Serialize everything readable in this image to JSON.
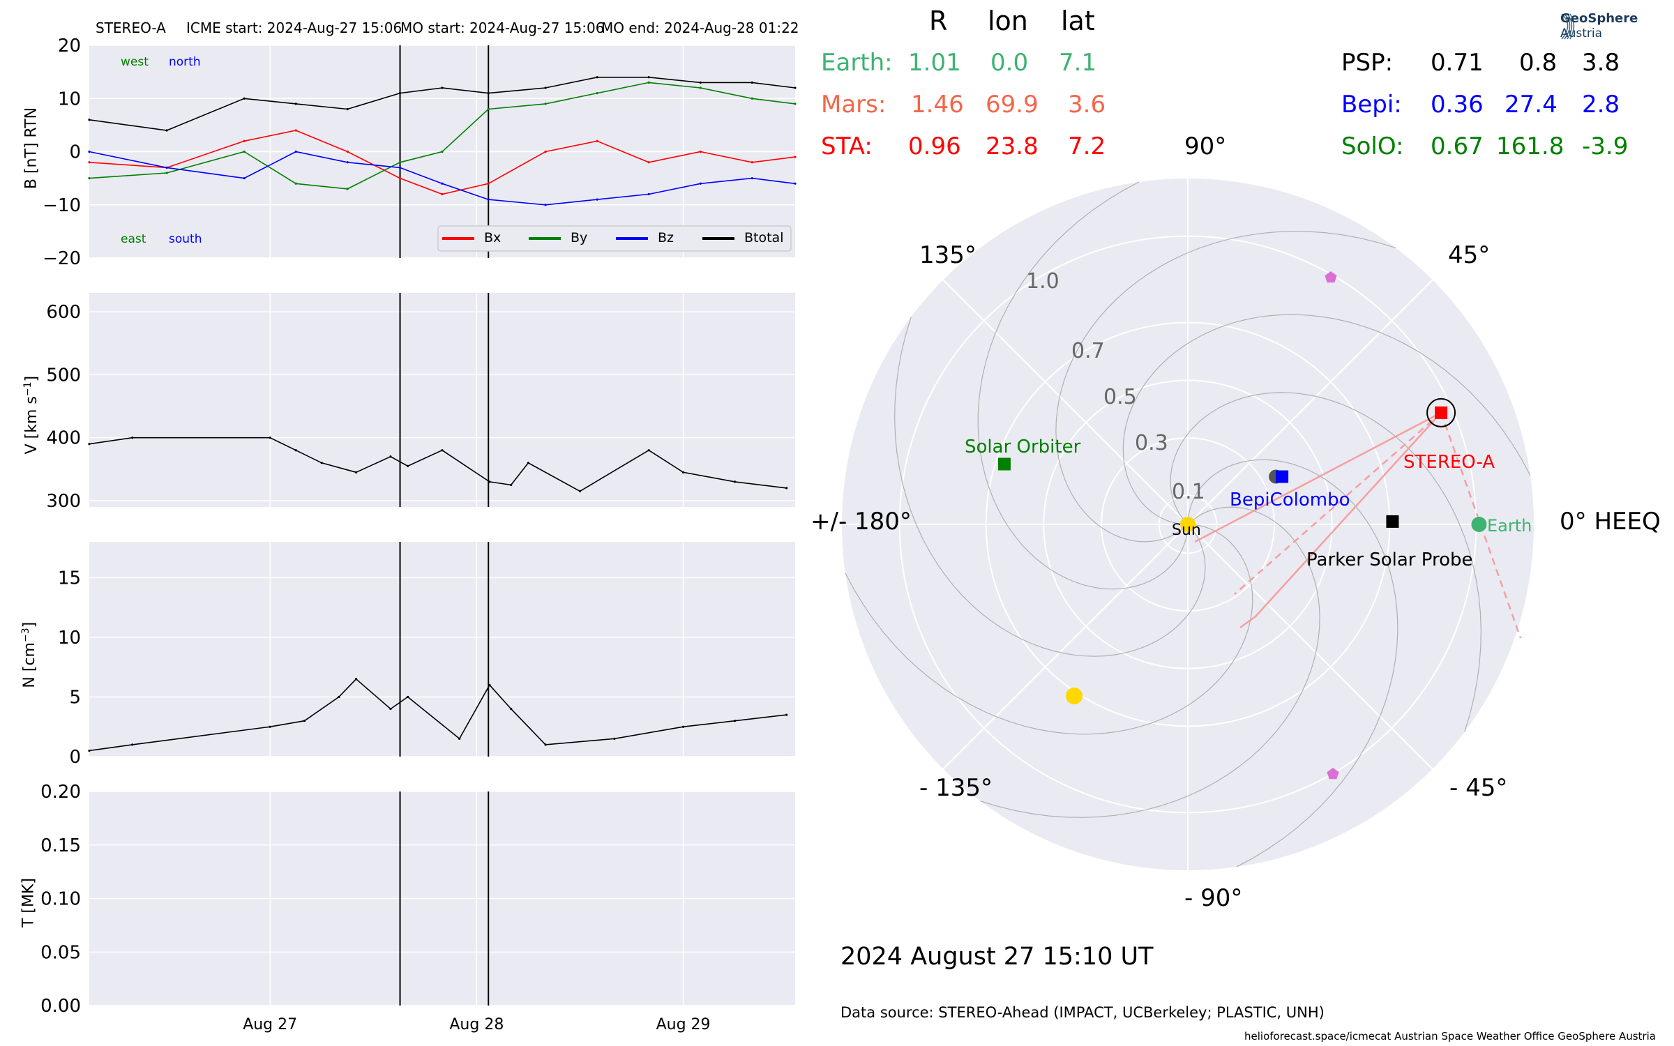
{
  "header": {
    "spacecraft": "STEREO-A",
    "icme_start": "ICME start: 2024-Aug-27 15:06",
    "mo_start": "MO start: 2024-Aug-27 15:06",
    "mo_end": "MO end: 2024-Aug-28 01:22"
  },
  "logo": {
    "line1": "GeoSphere",
    "line2": "Austria"
  },
  "colors": {
    "bg_panel": "#eaeaf2",
    "grid": "#ffffff",
    "bx": "#ff0000",
    "by": "#008000",
    "bz": "#0000ff",
    "btotal": "#000000",
    "earth": "#3cb371",
    "mars": "#f4664a",
    "sta": "#ff0000",
    "psp": "#000000",
    "bepi": "#0000ff",
    "solo": "#008000",
    "sun": "#ffd700",
    "pink": "#da70d6"
  },
  "chart_data": [
    {
      "type": "line",
      "ylabel": "B [nT] RTN",
      "ylim": [
        -20,
        20
      ],
      "yticks": [
        "20",
        "10",
        "0",
        "−10",
        "−20"
      ],
      "corner_labels": {
        "west": "west",
        "north": "north",
        "east": "east",
        "south": "south"
      },
      "legend": [
        "Bx",
        "By",
        "Bz",
        "Btotal"
      ],
      "x_domain": [
        "2024-08-26T03:00",
        "2024-08-29T13:00"
      ],
      "event_lines": [
        "2024-08-27T15:06",
        "2024-08-28T01:22"
      ],
      "series": [
        {
          "name": "Btotal",
          "x": [
            "2024-08-26T03:00",
            "2024-08-26T12:00",
            "2024-08-26T21:00",
            "2024-08-27T03:00",
            "2024-08-27T09:00",
            "2024-08-27T15:06",
            "2024-08-27T20:00",
            "2024-08-28T01:22",
            "2024-08-28T08:00",
            "2024-08-28T14:00",
            "2024-08-28T20:00",
            "2024-08-29T02:00",
            "2024-08-29T08:00",
            "2024-08-29T13:00"
          ],
          "values": [
            6,
            4,
            10,
            9,
            8,
            11,
            12,
            11,
            12,
            14,
            14,
            13,
            13,
            12
          ]
        },
        {
          "name": "Bx",
          "x": [
            "2024-08-26T03:00",
            "2024-08-26T12:00",
            "2024-08-26T21:00",
            "2024-08-27T03:00",
            "2024-08-27T09:00",
            "2024-08-27T15:06",
            "2024-08-27T20:00",
            "2024-08-28T01:22",
            "2024-08-28T08:00",
            "2024-08-28T14:00",
            "2024-08-28T20:00",
            "2024-08-29T02:00",
            "2024-08-29T08:00",
            "2024-08-29T13:00"
          ],
          "values": [
            -2,
            -3,
            2,
            4,
            0,
            -5,
            -8,
            -6,
            0,
            2,
            -2,
            0,
            -2,
            -1
          ]
        },
        {
          "name": "By",
          "x": [
            "2024-08-26T03:00",
            "2024-08-26T12:00",
            "2024-08-26T21:00",
            "2024-08-27T03:00",
            "2024-08-27T09:00",
            "2024-08-27T15:06",
            "2024-08-27T20:00",
            "2024-08-28T01:22",
            "2024-08-28T08:00",
            "2024-08-28T14:00",
            "2024-08-28T20:00",
            "2024-08-29T02:00",
            "2024-08-29T08:00",
            "2024-08-29T13:00"
          ],
          "values": [
            -5,
            -4,
            0,
            -6,
            -7,
            -2,
            0,
            8,
            9,
            11,
            13,
            12,
            10,
            9
          ]
        },
        {
          "name": "Bz",
          "x": [
            "2024-08-26T03:00",
            "2024-08-26T12:00",
            "2024-08-26T21:00",
            "2024-08-27T03:00",
            "2024-08-27T09:00",
            "2024-08-27T15:06",
            "2024-08-27T20:00",
            "2024-08-28T01:22",
            "2024-08-28T08:00",
            "2024-08-28T14:00",
            "2024-08-28T20:00",
            "2024-08-29T02:00",
            "2024-08-29T08:00",
            "2024-08-29T13:00"
          ],
          "values": [
            0,
            -3,
            -5,
            0,
            -2,
            -3,
            -6,
            -9,
            -10,
            -9,
            -8,
            -6,
            -5,
            -6
          ]
        }
      ]
    },
    {
      "type": "line",
      "ylabel": "V [km s$^{-1}$]",
      "ylabel_text": "V [km s",
      "ylabel_sup": "−1",
      "ylim": [
        290,
        630
      ],
      "yticks": [
        "600",
        "500",
        "400",
        "300"
      ],
      "x_domain": [
        "2024-08-26T03:00",
        "2024-08-29T13:00"
      ],
      "series": [
        {
          "name": "V",
          "x": [
            "2024-08-26T03:00",
            "2024-08-26T08:00",
            "2024-08-27T00:00",
            "2024-08-27T03:00",
            "2024-08-27T06:00",
            "2024-08-27T10:00",
            "2024-08-27T14:00",
            "2024-08-27T16:00",
            "2024-08-27T20:00",
            "2024-08-28T01:30",
            "2024-08-28T04:00",
            "2024-08-28T06:00",
            "2024-08-28T12:00",
            "2024-08-28T20:00",
            "2024-08-29T00:00",
            "2024-08-29T06:00",
            "2024-08-29T12:00"
          ],
          "values": [
            390,
            400,
            400,
            380,
            360,
            345,
            370,
            355,
            380,
            330,
            325,
            360,
            315,
            380,
            345,
            330,
            320
          ]
        }
      ]
    },
    {
      "type": "line",
      "ylabel": "N [cm$^{-3}$]",
      "ylabel_text": "N [cm",
      "ylabel_sup": "−3",
      "ylim": [
        0,
        18
      ],
      "yticks": [
        "15",
        "10",
        "5",
        "0"
      ],
      "x_domain": [
        "2024-08-26T03:00",
        "2024-08-29T13:00"
      ],
      "series": [
        {
          "name": "N",
          "x": [
            "2024-08-26T03:00",
            "2024-08-26T08:00",
            "2024-08-27T00:00",
            "2024-08-27T04:00",
            "2024-08-27T08:00",
            "2024-08-27T10:00",
            "2024-08-27T14:00",
            "2024-08-27T16:00",
            "2024-08-27T22:00",
            "2024-08-28T01:30",
            "2024-08-28T04:00",
            "2024-08-28T08:00",
            "2024-08-28T16:00",
            "2024-08-29T00:00",
            "2024-08-29T06:00",
            "2024-08-29T12:00"
          ],
          "values": [
            0.5,
            1,
            2.5,
            3,
            5,
            6.5,
            4,
            5,
            1.5,
            6,
            4,
            1,
            1.5,
            2.5,
            3,
            3.5
          ]
        }
      ]
    },
    {
      "type": "line",
      "ylabel": "T [MK]",
      "ylim": [
        0,
        0.2
      ],
      "yticks": [
        "0.20",
        "0.15",
        "0.10",
        "0.05",
        "0.00"
      ],
      "x_domain": [
        "2024-08-26T03:00",
        "2024-08-29T13:00"
      ],
      "xticks": [
        "Aug 27",
        "Aug 28",
        "Aug 29"
      ],
      "series": []
    },
    {
      "type": "scatter",
      "projection": "polar",
      "r_ticks": [
        "1.0",
        "0.7",
        "0.5",
        "0.3",
        "0.1"
      ],
      "angle_labels": [
        "90°",
        "45°",
        "0° HEEQ",
        "- 45°",
        "- 90°",
        "- 135°",
        "+/- 180°",
        "135°"
      ],
      "table_header": [
        "R",
        "lon",
        "lat"
      ],
      "table_left": [
        {
          "name": "Earth:",
          "R": "1.01",
          "lon": "0.0",
          "lat": "7.1",
          "color": "#3cb371"
        },
        {
          "name": "Mars:",
          "R": "1.46",
          "lon": "69.9",
          "lat": "3.6",
          "color": "#f4664a"
        },
        {
          "name": "STA:",
          "R": "0.96",
          "lon": "23.8",
          "lat": "7.2",
          "color": "#ff0000"
        }
      ],
      "table_right": [
        {
          "name": "PSP:",
          "R": "0.71",
          "lon": "0.8",
          "lat": "3.8",
          "color": "#000000"
        },
        {
          "name": "Bepi:",
          "R": "0.36",
          "lon": "27.4",
          "lat": "2.8",
          "color": "#0000ff"
        },
        {
          "name": "SolO:",
          "R": "0.67",
          "lon": "161.8",
          "lat": "-3.9",
          "color": "#008000"
        }
      ],
      "bodies": [
        {
          "label": "Sun",
          "r": 0.0,
          "lon": 0.0
        },
        {
          "label": "Earth",
          "r": 1.01,
          "lon": 0.0
        },
        {
          "label": "STEREO-A",
          "r": 0.96,
          "lon": 23.8
        },
        {
          "label": "Parker Solar Probe",
          "r": 0.71,
          "lon": 0.8
        },
        {
          "label": "BepiColombo",
          "r": 0.36,
          "lon": 27.4
        },
        {
          "label": "Solar Orbiter",
          "r": 0.67,
          "lon": 161.8
        }
      ],
      "timestamp": "2024 August 27  15:10 UT",
      "data_source": "Data source: STEREO-Ahead (IMPACT, UCBerkeley; PLASTIC, UNH)",
      "credits": "helioforecast.space/icmecat   Austrian Space Weather Office   GeoSphere Austria"
    }
  ]
}
